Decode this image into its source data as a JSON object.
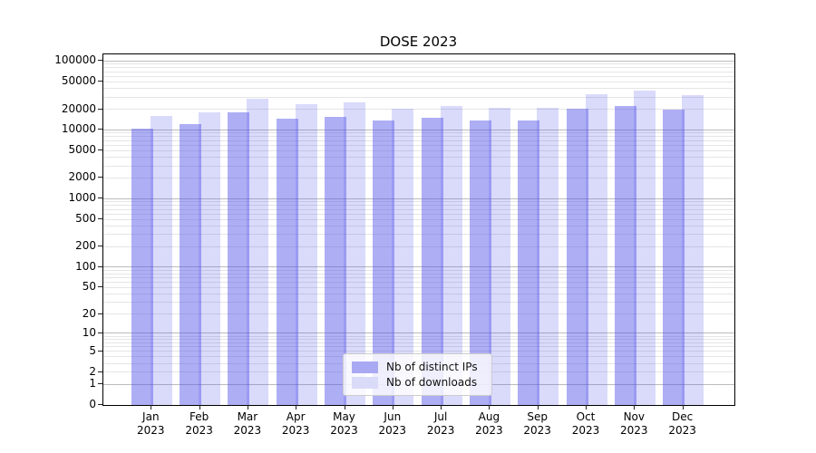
{
  "title": "DOSE 2023",
  "chart_data": {
    "type": "bar",
    "title": "DOSE 2023",
    "categories": [
      "Jan",
      "Feb",
      "Mar",
      "Apr",
      "May",
      "Jun",
      "Jul",
      "Aug",
      "Sep",
      "Oct",
      "Nov",
      "Dec"
    ],
    "year_label": "2023",
    "series": [
      {
        "name": "Nb of distinct IPs",
        "fill": "rgba(85,85,235,0.48)",
        "legend_color": "#a9a9f3",
        "values": [
          10500,
          12000,
          17800,
          14700,
          15600,
          13900,
          14800,
          13800,
          13800,
          20300,
          22000,
          20000
        ]
      },
      {
        "name": "Nb of downloads",
        "fill": "rgba(85,85,235,0.22)",
        "legend_color": "#dadaf9",
        "values": [
          16000,
          18000,
          28500,
          24000,
          25000,
          20500,
          22500,
          21100,
          21100,
          33000,
          37000,
          32400
        ]
      }
    ],
    "yscale": "log-like (log10(1+v))",
    "ylim": [
      0,
      125000
    ],
    "ytick_values": [
      0,
      1,
      2,
      5,
      10,
      20,
      50,
      100,
      200,
      500,
      1000,
      2000,
      5000,
      10000,
      20000,
      50000,
      100000
    ],
    "ytick_labels": [
      "0",
      "1",
      "2",
      "5",
      "10",
      "20",
      "50",
      "100",
      "200",
      "500",
      "1000",
      "2000",
      "5000",
      "10000",
      "20000",
      "50000",
      "100000"
    ],
    "xlabel": "",
    "ylabel": "",
    "grid": {
      "orientation": "horizontal",
      "major_color": "#bbbbbb",
      "minor_color": "#e5e5e5"
    },
    "legend_position": "lower center"
  }
}
